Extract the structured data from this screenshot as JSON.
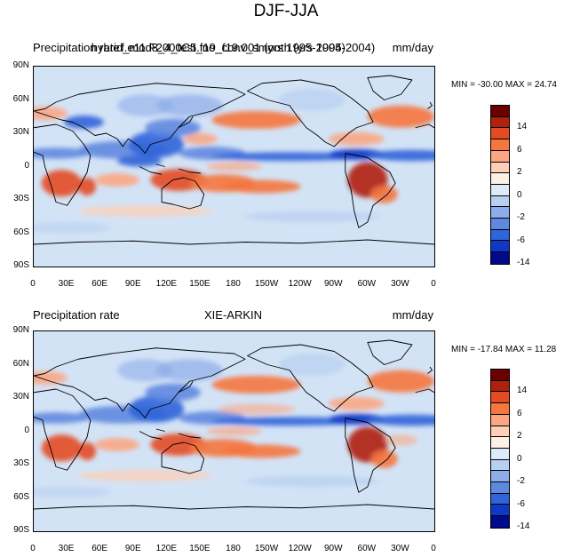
{
  "figure": {
    "title": "DJF-JJA"
  },
  "panels": [
    {
      "left": "Precipitation rate",
      "center": "f.e11.F2000C5.f19_f19.001 (yrs 1995-2004)",
      "center2": "hybrid_mod8_4_test_no_conv_smooth (yrs 1995-2004)",
      "right": "mm/day",
      "minmax": "MIN = -30.00 MAX =  24.74",
      "field": "model"
    },
    {
      "left": "Precipitation rate",
      "center": "XIE-ARKIN",
      "right": "mm/day",
      "minmax": "MIN = -17.84 MAX =  11.28",
      "field": "obs"
    }
  ],
  "axes": {
    "lat_labels": [
      "90N",
      "60N",
      "30N",
      "0",
      "30S",
      "60S",
      "90S"
    ],
    "lon_labels": [
      "0",
      "30E",
      "60E",
      "90E",
      "120E",
      "150E",
      "180",
      "150W",
      "120W",
      "90W",
      "60W",
      "30W",
      "0"
    ]
  },
  "colorbar": {
    "labels": [
      "14",
      "6",
      "2",
      "0",
      "-2",
      "-6",
      "-14"
    ],
    "colors": [
      "#6b0000",
      "#b0200c",
      "#e34b22",
      "#f5763f",
      "#fba683",
      "#fdcfb6",
      "#fdf0e6",
      "#ddeaf7",
      "#b7cff0",
      "#8dace9",
      "#5f88e0",
      "#3064d9",
      "#1038c8",
      "#000a8a"
    ]
  }
}
